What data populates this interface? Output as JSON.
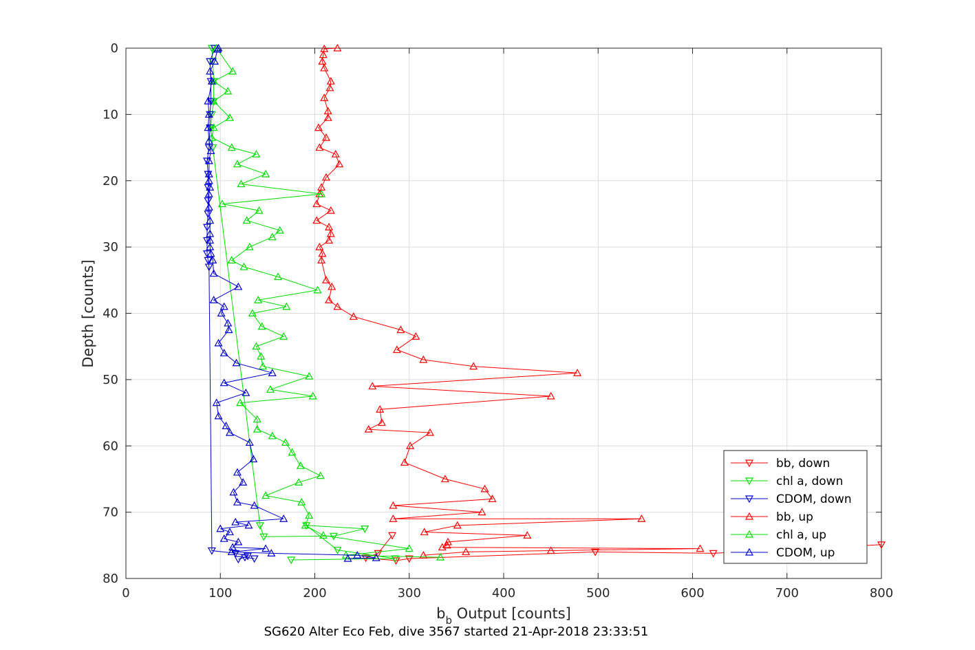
{
  "chart_data": {
    "type": "line",
    "xlabel_main": "b",
    "xlabel_sub": "b",
    "xlabel_rest": " Output [counts]",
    "ylabel": "Depth [counts]",
    "caption": "SG620 Alter Eco Feb, dive 3567 started 21-Apr-2018 23:33:51",
    "xlim": [
      0,
      800
    ],
    "ylim": [
      80,
      0
    ],
    "y_reversed": true,
    "xticks": [
      "0",
      "100",
      "200",
      "300",
      "400",
      "500",
      "600",
      "700",
      "800"
    ],
    "yticks": [
      "0",
      "10",
      "20",
      "30",
      "40",
      "50",
      "60",
      "70",
      "80"
    ],
    "grid": true,
    "legend_position": "bottom-right",
    "series": [
      {
        "name": "bb, down",
        "color": "#ff0000",
        "marker": "triangle-down",
        "points": [
          [
            282,
            73.5
          ],
          [
            267,
            76.2
          ],
          [
            254,
            76.9
          ],
          [
            286,
            77.3
          ],
          [
            300,
            77.0
          ],
          [
            497,
            76.0
          ],
          [
            622,
            76.2
          ],
          [
            800,
            74.9
          ]
        ]
      },
      {
        "name": "chl a, down",
        "color": "#00dd00",
        "marker": "triangle-down",
        "points": [
          [
            91,
            0.0
          ],
          [
            92,
            2.0
          ],
          [
            93,
            5.0
          ],
          [
            93,
            8.0
          ],
          [
            91,
            10.0
          ],
          [
            90,
            12.0
          ],
          [
            92,
            15.0
          ],
          [
            142,
            72.0
          ],
          [
            146,
            73.7
          ],
          [
            220,
            73.6
          ],
          [
            253,
            72.5
          ],
          [
            191,
            72.0
          ],
          [
            224,
            75.7
          ],
          [
            285,
            77.0
          ],
          [
            175,
            77.2
          ]
        ]
      },
      {
        "name": "CDOM, down",
        "color": "#0000cc",
        "marker": "triangle-down",
        "points": [
          [
            94,
            0.0
          ],
          [
            89,
            2.0
          ],
          [
            90,
            5.0
          ],
          [
            90,
            8.0
          ],
          [
            89,
            10.0
          ],
          [
            89,
            12.0
          ],
          [
            88,
            15.0
          ],
          [
            86,
            17.0
          ],
          [
            87,
            19.0
          ],
          [
            87,
            21.0
          ],
          [
            87,
            23.0
          ],
          [
            87,
            25.0
          ],
          [
            86,
            27.0
          ],
          [
            86,
            29.0
          ],
          [
            86,
            31.0
          ],
          [
            87,
            32.0
          ],
          [
            88,
            33.0
          ],
          [
            91,
            75.8
          ],
          [
            116,
            76.2
          ],
          [
            129,
            76.6
          ],
          [
            119,
            77.1
          ],
          [
            126,
            76.8
          ],
          [
            136,
            77.0
          ]
        ]
      },
      {
        "name": "bb, up",
        "color": "#ff0000",
        "marker": "triangle-up",
        "points": [
          [
            224,
            0.0
          ],
          [
            210,
            0.1
          ],
          [
            209,
            1.0
          ],
          [
            208,
            2.0
          ],
          [
            210,
            3.0
          ],
          [
            217,
            5.0
          ],
          [
            216,
            6.0
          ],
          [
            210,
            7.5
          ],
          [
            214,
            9.5
          ],
          [
            214,
            10.5
          ],
          [
            204,
            12.0
          ],
          [
            212,
            13.5
          ],
          [
            205,
            15.0
          ],
          [
            222,
            16.0
          ],
          [
            226,
            17.5
          ],
          [
            212,
            19.5
          ],
          [
            207,
            21.0
          ],
          [
            205,
            22.0
          ],
          [
            202,
            23.5
          ],
          [
            217,
            24.5
          ],
          [
            202,
            26.0
          ],
          [
            215,
            27.0
          ],
          [
            217,
            28.0
          ],
          [
            215,
            29.0
          ],
          [
            205,
            30.0
          ],
          [
            208,
            31.0
          ],
          [
            207,
            32.0
          ],
          [
            212,
            35.0
          ],
          [
            218,
            36.0
          ],
          [
            215,
            38.0
          ],
          [
            224,
            39.0
          ],
          [
            241,
            40.5
          ],
          [
            291,
            42.5
          ],
          [
            307,
            43.5
          ],
          [
            287,
            45.5
          ],
          [
            315,
            47.0
          ],
          [
            368,
            48.0
          ],
          [
            478,
            49.0
          ],
          [
            261,
            51.0
          ],
          [
            450,
            52.5
          ],
          [
            269,
            54.5
          ],
          [
            271,
            56.5
          ],
          [
            257,
            57.5
          ],
          [
            322,
            58.0
          ],
          [
            301,
            60.0
          ],
          [
            295,
            62.5
          ],
          [
            338,
            65.0
          ],
          [
            380,
            66.5
          ],
          [
            388,
            68.0
          ],
          [
            283,
            69.0
          ],
          [
            377,
            70.0
          ],
          [
            283,
            71.0
          ],
          [
            546,
            71.0
          ],
          [
            351,
            72.0
          ],
          [
            316,
            73.0
          ],
          [
            425,
            73.5
          ],
          [
            341,
            74.5
          ],
          [
            340,
            75.0
          ],
          [
            335,
            75.3
          ],
          [
            608,
            75.5
          ],
          [
            450,
            75.8
          ],
          [
            360,
            76.0
          ],
          [
            315,
            76.5
          ]
        ]
      },
      {
        "name": "chl a, up",
        "color": "#00dd00",
        "marker": "triangle-up",
        "points": [
          [
            96,
            0.0
          ],
          [
            113,
            3.5
          ],
          [
            93,
            5.0
          ],
          [
            108,
            6.5
          ],
          [
            93,
            8.0
          ],
          [
            110,
            10.5
          ],
          [
            93,
            12.0
          ],
          [
            91,
            13.5
          ],
          [
            112,
            15.0
          ],
          [
            138,
            16.0
          ],
          [
            118,
            17.5
          ],
          [
            148,
            19.0
          ],
          [
            122,
            20.5
          ],
          [
            207,
            22.0
          ],
          [
            102,
            23.5
          ],
          [
            141,
            24.5
          ],
          [
            128,
            26.0
          ],
          [
            163,
            27.5
          ],
          [
            155,
            28.5
          ],
          [
            131,
            30.0
          ],
          [
            112,
            32.0
          ],
          [
            125,
            33.0
          ],
          [
            161,
            34.5
          ],
          [
            203,
            36.5
          ],
          [
            140,
            38.0
          ],
          [
            170,
            39.0
          ],
          [
            134,
            40.0
          ],
          [
            144,
            42.0
          ],
          [
            167,
            43.5
          ],
          [
            138,
            45.0
          ],
          [
            143,
            46.5
          ],
          [
            145,
            48.0
          ],
          [
            194,
            49.5
          ],
          [
            153,
            51.5
          ],
          [
            198,
            52.5
          ],
          [
            121,
            53.5
          ],
          [
            139,
            56.0
          ],
          [
            139,
            57.5
          ],
          [
            155,
            58.5
          ],
          [
            169,
            59.5
          ],
          [
            176,
            61.0
          ],
          [
            185,
            63.0
          ],
          [
            206,
            64.5
          ],
          [
            183,
            65.5
          ],
          [
            148,
            67.5
          ],
          [
            186,
            68.5
          ],
          [
            194,
            70.5
          ],
          [
            190,
            72.0
          ],
          [
            209,
            73.5
          ],
          [
            300,
            75.5
          ],
          [
            233,
            76.5
          ],
          [
            333,
            76.8
          ]
        ]
      },
      {
        "name": "CDOM, up",
        "color": "#0000cc",
        "marker": "triangle-up",
        "points": [
          [
            98,
            0.0
          ],
          [
            97,
            0.2
          ],
          [
            94,
            2.0
          ],
          [
            89,
            3.5
          ],
          [
            91,
            5.0
          ],
          [
            87,
            8.0
          ],
          [
            88,
            10.0
          ],
          [
            87,
            12.0
          ],
          [
            88,
            14.0
          ],
          [
            90,
            15.5
          ],
          [
            88,
            17.0
          ],
          [
            88,
            19.0
          ],
          [
            88,
            20.0
          ],
          [
            89,
            21.0
          ],
          [
            88,
            22.0
          ],
          [
            88,
            24.0
          ],
          [
            89,
            26.0
          ],
          [
            89,
            28.0
          ],
          [
            89,
            29.0
          ],
          [
            89,
            30.0
          ],
          [
            90,
            31.0
          ],
          [
            92,
            32.0
          ],
          [
            93,
            34.0
          ],
          [
            119,
            36.0
          ],
          [
            93,
            38.0
          ],
          [
            104,
            39.0
          ],
          [
            101,
            40.0
          ],
          [
            108,
            41.5
          ],
          [
            109,
            42.5
          ],
          [
            98,
            44.5
          ],
          [
            104,
            46.0
          ],
          [
            117,
            47.5
          ],
          [
            155,
            49.0
          ],
          [
            104,
            50.5
          ],
          [
            127,
            52.0
          ],
          [
            96,
            53.5
          ],
          [
            98,
            55.5
          ],
          [
            106,
            57.0
          ],
          [
            110,
            58.0
          ],
          [
            131,
            59.5
          ],
          [
            135,
            62.0
          ],
          [
            118,
            64.0
          ],
          [
            124,
            65.5
          ],
          [
            114,
            67.0
          ],
          [
            118,
            68.5
          ],
          [
            136,
            69.0
          ],
          [
            167,
            71.0
          ],
          [
            116,
            71.5
          ],
          [
            130,
            72.0
          ],
          [
            100,
            72.5
          ],
          [
            110,
            73.0
          ],
          [
            104,
            74.0
          ],
          [
            119,
            74.5
          ],
          [
            113,
            75.3
          ],
          [
            148,
            75.5
          ],
          [
            112,
            76.0
          ],
          [
            154,
            76.2
          ],
          [
            245,
            76.5
          ],
          [
            265,
            76.9
          ],
          [
            235,
            77.0
          ]
        ]
      }
    ]
  }
}
